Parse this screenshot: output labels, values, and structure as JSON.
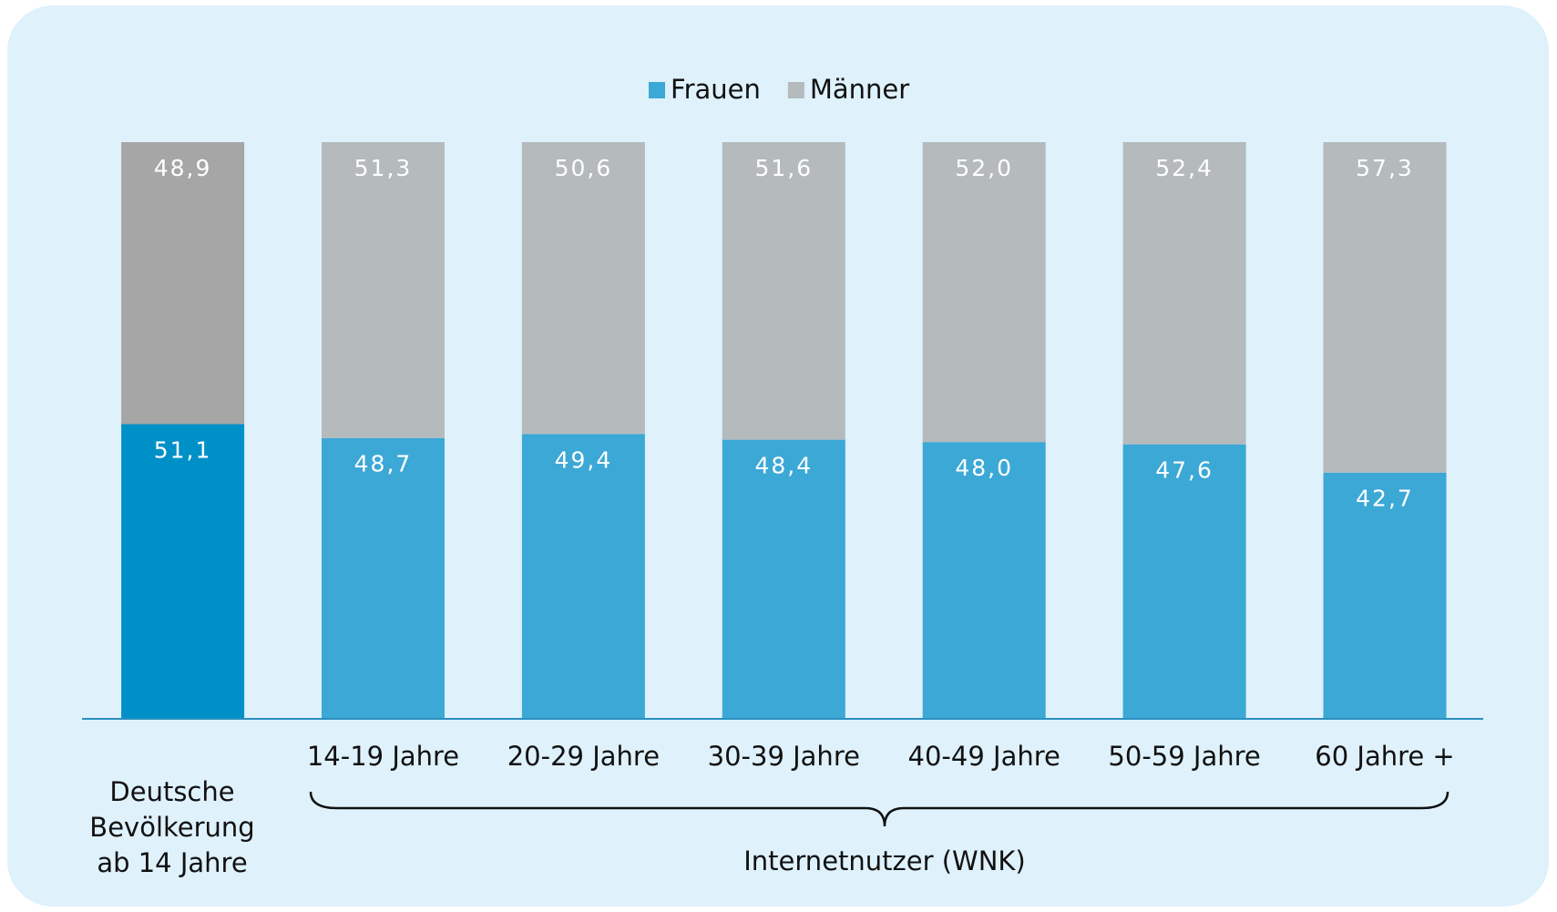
{
  "chart_data": {
    "type": "stacked_bar",
    "categories": [
      "Deutsche Bevölkerung ab 14 Jahre",
      "14-19 Jahre",
      "20-29 Jahre",
      "30-39 Jahre",
      "40-49 Jahre",
      "50-59 Jahre",
      "60 Jahre +"
    ],
    "series": [
      {
        "name": "Frauen",
        "color": "#3ca8d6",
        "colors": [
          "#0090c8",
          "#3ca8d6",
          "#3ca8d6",
          "#3ca8d6",
          "#3ca8d6",
          "#3ca8d6",
          "#3ca8d6"
        ],
        "values": [
          51.1,
          48.7,
          49.4,
          48.4,
          48.0,
          47.6,
          42.7
        ],
        "value_labels": [
          "51,1",
          "48,7",
          "49,4",
          "48,4",
          "48,0",
          "47,6",
          "42,7"
        ]
      },
      {
        "name": "Männer",
        "color": "#b5babd",
        "colors": [
          "#a6a6a6",
          "#b5babd",
          "#b5babd",
          "#b5babd",
          "#b5babd",
          "#b5babd",
          "#b5babd"
        ],
        "values": [
          48.9,
          51.3,
          50.6,
          51.6,
          52.0,
          52.4,
          57.3
        ],
        "value_labels": [
          "48,9",
          "51,3",
          "50,6",
          "51,6",
          "52,0",
          "52,4",
          "57,3"
        ]
      }
    ],
    "ylim": [
      0,
      100
    ],
    "legend": "top",
    "annotations": [
      "Internetnutzer (WNK)"
    ]
  }
}
